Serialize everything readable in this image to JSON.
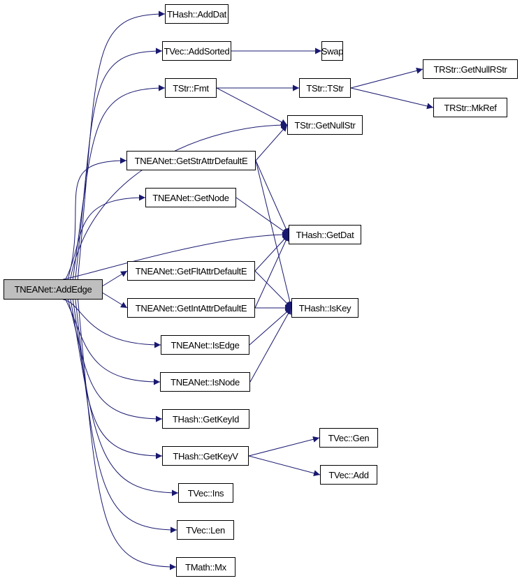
{
  "edge_color": "#191970",
  "root_fill": "#bfbfbf",
  "nodes": {
    "addedge": "TNEANet::AddEdge",
    "adddat": "THash::AddDat",
    "addsorted": "TVec::AddSorted",
    "swap": "Swap",
    "fmt": "TStr::Fmt",
    "tstr": "TStr::TStr",
    "getnullrstr": "TRStr::GetNullRStr",
    "mkref": "TRStr::MkRef",
    "getnullstr": "TStr::GetNullStr",
    "getstrattr": "TNEANet::GetStrAttrDefaultE",
    "getnode": "TNEANet::GetNode",
    "getdat": "THash::GetDat",
    "getfltattr": "TNEANet::GetFltAttrDefaultE",
    "getintattr": "TNEANet::GetIntAttrDefaultE",
    "iskey": "THash::IsKey",
    "isedge": "TNEANet::IsEdge",
    "isnode": "TNEANet::IsNode",
    "getkeyid": "THash::GetKeyId",
    "getkeyv": "THash::GetKeyV",
    "gen": "TVec::Gen",
    "add": "TVec::Add",
    "ins": "TVec::Ins",
    "len": "TVec::Len",
    "mx": "TMath::Mx"
  },
  "edges": [
    [
      "addedge",
      "adddat"
    ],
    [
      "addedge",
      "addsorted"
    ],
    [
      "addedge",
      "fmt"
    ],
    [
      "addedge",
      "getnullstr"
    ],
    [
      "addedge",
      "getstrattr"
    ],
    [
      "addedge",
      "getnode"
    ],
    [
      "addedge",
      "getdat"
    ],
    [
      "addedge",
      "getfltattr"
    ],
    [
      "addedge",
      "getintattr"
    ],
    [
      "addedge",
      "isedge"
    ],
    [
      "addedge",
      "isnode"
    ],
    [
      "addedge",
      "getkeyid"
    ],
    [
      "addedge",
      "getkeyv"
    ],
    [
      "addedge",
      "ins"
    ],
    [
      "addedge",
      "len"
    ],
    [
      "addedge",
      "mx"
    ],
    [
      "addsorted",
      "swap"
    ],
    [
      "fmt",
      "tstr"
    ],
    [
      "fmt",
      "getnullstr"
    ],
    [
      "tstr",
      "getnullrstr"
    ],
    [
      "tstr",
      "mkref"
    ],
    [
      "getstrattr",
      "getnullstr"
    ],
    [
      "getstrattr",
      "getdat"
    ],
    [
      "getstrattr",
      "iskey"
    ],
    [
      "getnode",
      "getdat"
    ],
    [
      "getfltattr",
      "getdat"
    ],
    [
      "getfltattr",
      "iskey"
    ],
    [
      "getintattr",
      "getdat"
    ],
    [
      "getintattr",
      "iskey"
    ],
    [
      "isedge",
      "iskey"
    ],
    [
      "isnode",
      "iskey"
    ],
    [
      "getkeyv",
      "gen"
    ],
    [
      "getkeyv",
      "add"
    ]
  ]
}
